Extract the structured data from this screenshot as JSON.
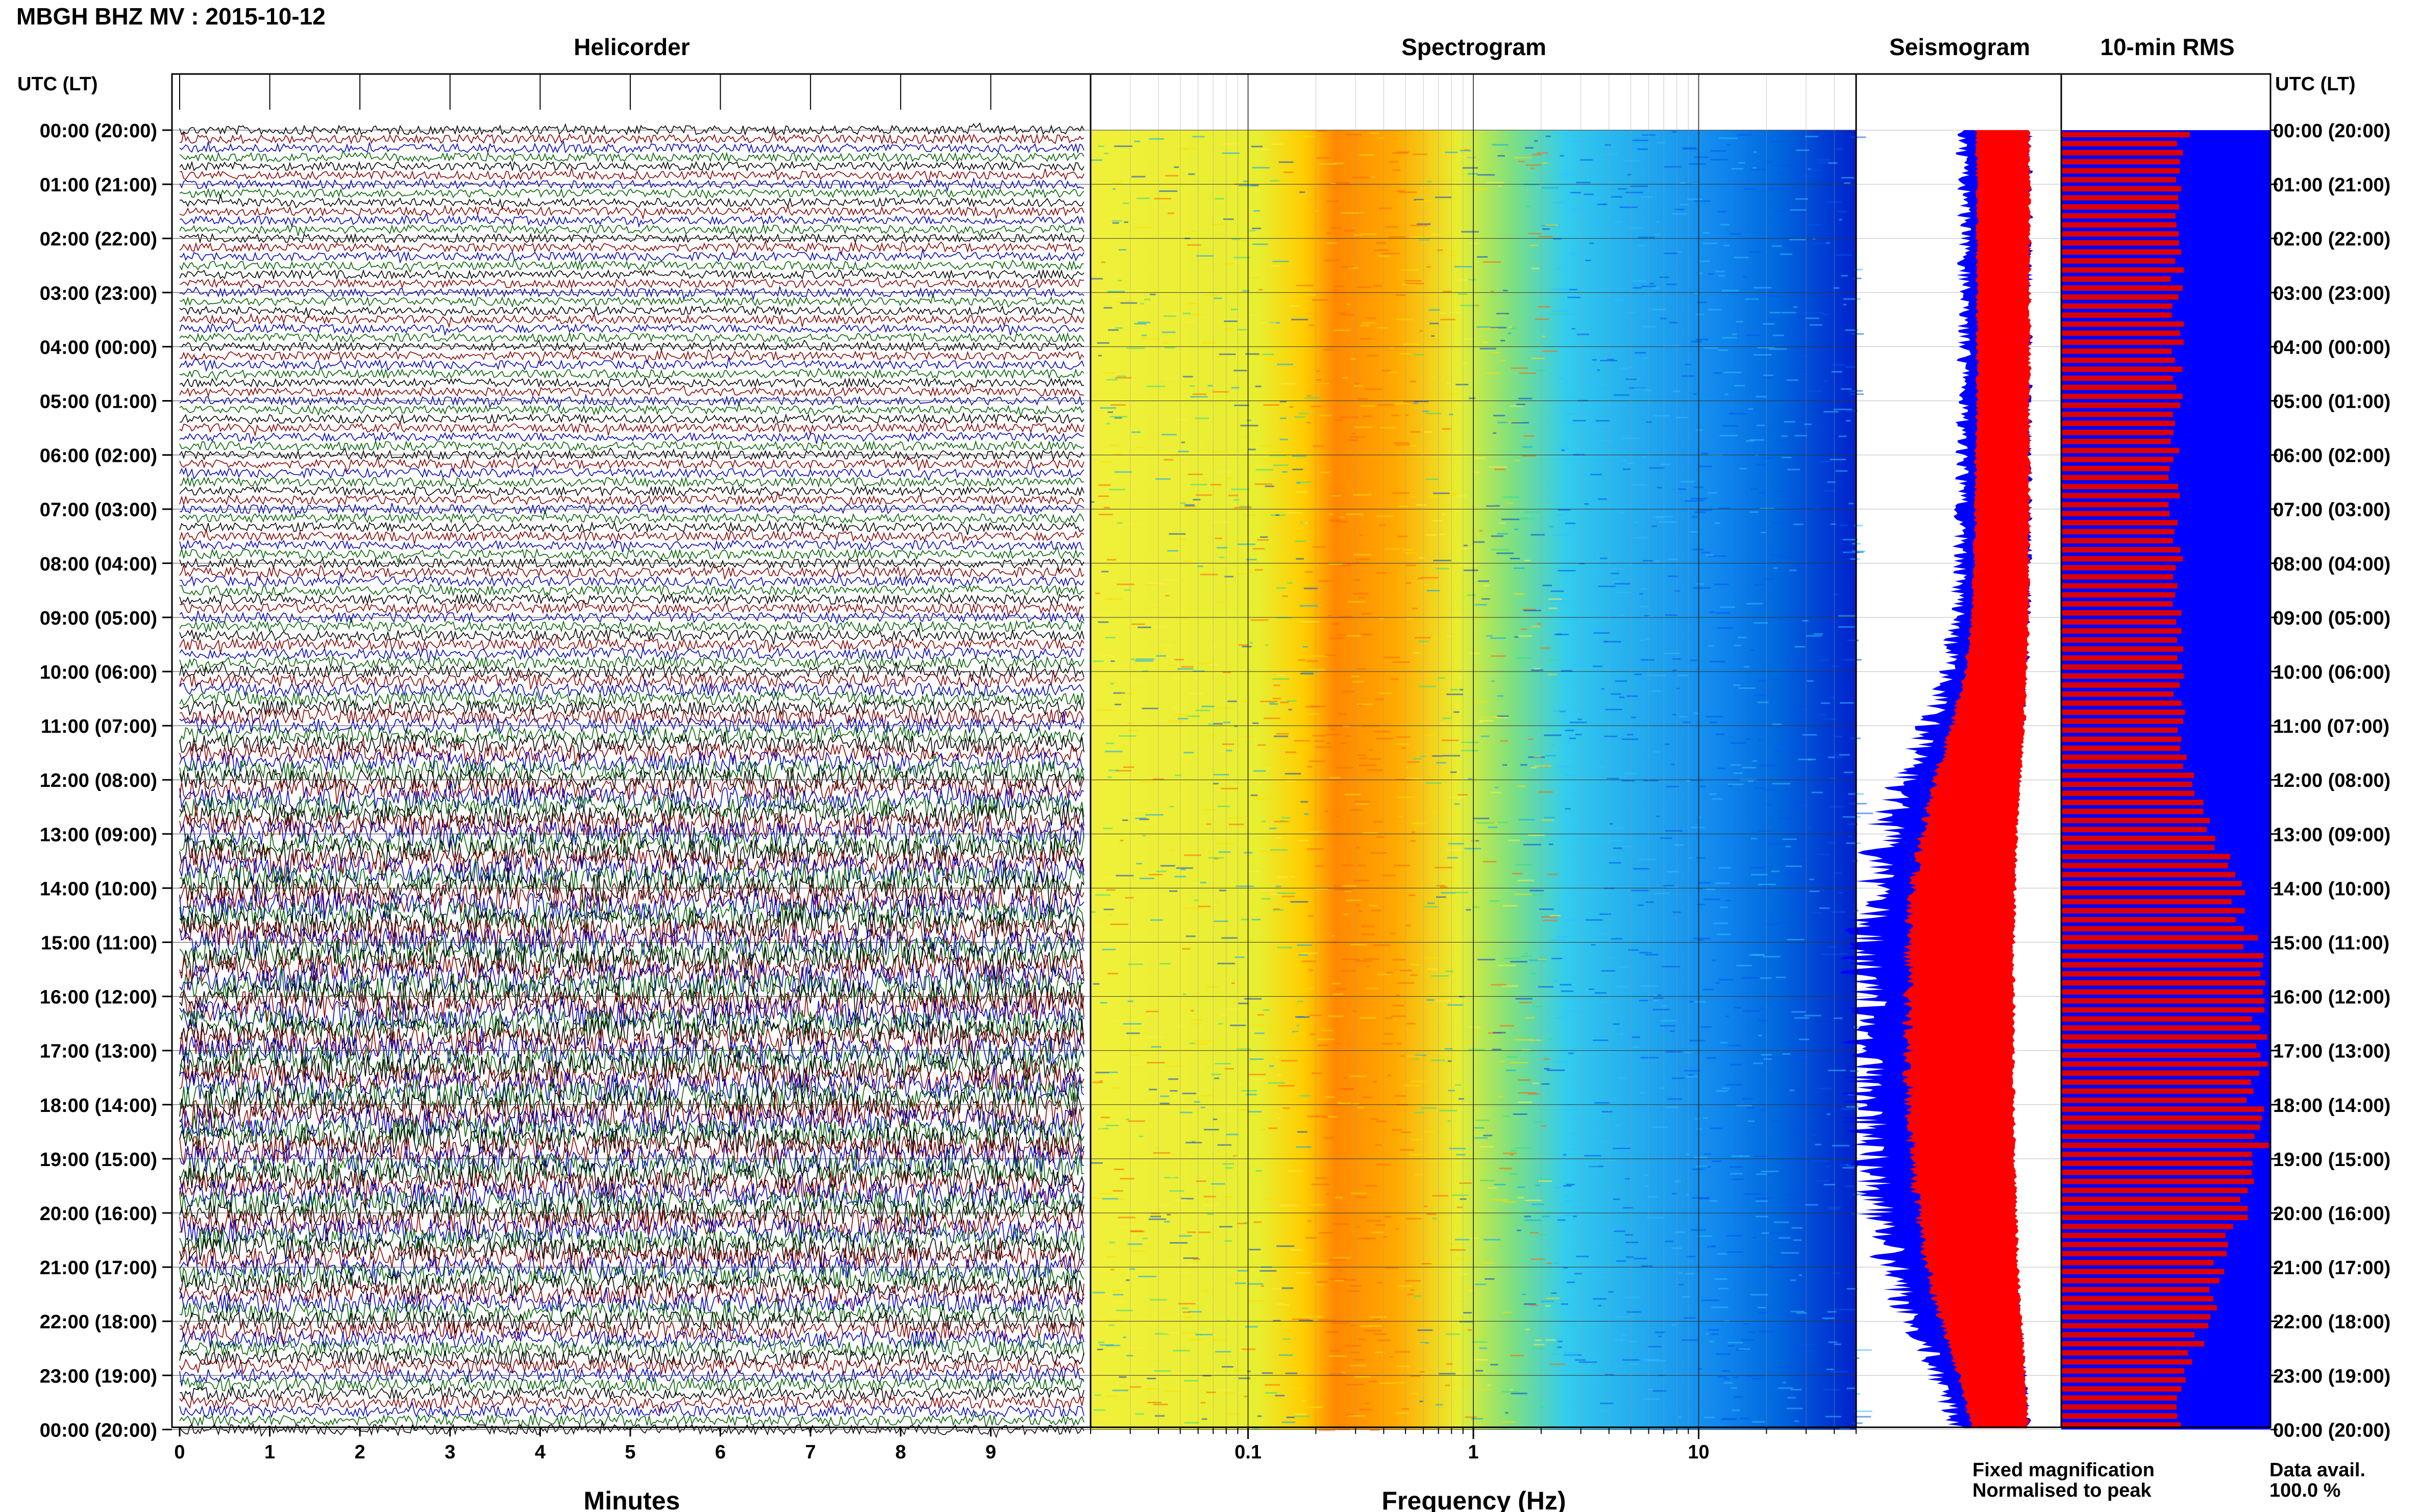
{
  "title": "MBGH BHZ MV : 2015-10-12",
  "panels": {
    "helicorder": "Helicorder",
    "spectrogram": "Spectrogram",
    "seismogram": "Seismogram",
    "rms": "10-min RMS"
  },
  "axis_header_left": "UTC (LT)",
  "axis_header_right": "UTC (LT)",
  "time_labels": [
    "00:00 (20:00)",
    "01:00 (21:00)",
    "02:00 (22:00)",
    "03:00 (23:00)",
    "04:00 (00:00)",
    "05:00 (01:00)",
    "06:00 (02:00)",
    "07:00 (03:00)",
    "08:00 (04:00)",
    "09:00 (05:00)",
    "10:00 (06:00)",
    "11:00 (07:00)",
    "12:00 (08:00)",
    "13:00 (09:00)",
    "14:00 (10:00)",
    "15:00 (11:00)",
    "16:00 (12:00)",
    "17:00 (13:00)",
    "18:00 (14:00)",
    "19:00 (15:00)",
    "20:00 (16:00)",
    "21:00 (17:00)",
    "22:00 (18:00)",
    "23:00 (19:00)",
    "00:00 (20:00)"
  ],
  "minutes_ticks": [
    "0",
    "1",
    "2",
    "3",
    "4",
    "5",
    "6",
    "7",
    "8",
    "9"
  ],
  "minutes_label": "Minutes",
  "freq_ticks": [
    "0.1",
    "1",
    "10"
  ],
  "freq_label": "Frequency (Hz)",
  "legend": {
    "fixed": "Fixed magnification",
    "normalised": "Normalised to peak",
    "fixed_color": "#0000ff",
    "normalised_color": "#ff0000"
  },
  "data_avail_label": "Data avail.",
  "data_avail_value": "100.0 %",
  "chart_data": {
    "type": "seismic-summary",
    "station": "MBGH",
    "channel": "BHZ",
    "network": "MV",
    "date": "2015-10-12",
    "helicorder_trace_colors": [
      "#000000",
      "#8b0000",
      "#0000cc",
      "#006400"
    ],
    "helicorder_minutes_per_line": 10,
    "spectrogram_freq_range_hz": [
      0.02,
      50
    ],
    "spectrogram_colormap": [
      "#ffff00",
      "#ff8c00",
      "#00bfff",
      "#0000ff"
    ],
    "seismogram_envelope_halfwidth_by_hour": [
      0.18,
      0.17,
      0.17,
      0.17,
      0.17,
      0.17,
      0.18,
      0.18,
      0.19,
      0.2,
      0.24,
      0.32,
      0.42,
      0.5,
      0.55,
      0.58,
      0.58,
      0.58,
      0.58,
      0.56,
      0.52,
      0.47,
      0.38,
      0.28,
      0.2
    ],
    "rms_fraction_by_hour": [
      0.58,
      0.57,
      0.56,
      0.55,
      0.56,
      0.55,
      0.54,
      0.54,
      0.55,
      0.55,
      0.56,
      0.58,
      0.62,
      0.75,
      0.85,
      0.92,
      0.96,
      0.95,
      0.92,
      0.95,
      0.85,
      0.75,
      0.68,
      0.58,
      0.56
    ],
    "rms_bar_color": "#dd0000",
    "rms_background_color": "#0000ff"
  }
}
